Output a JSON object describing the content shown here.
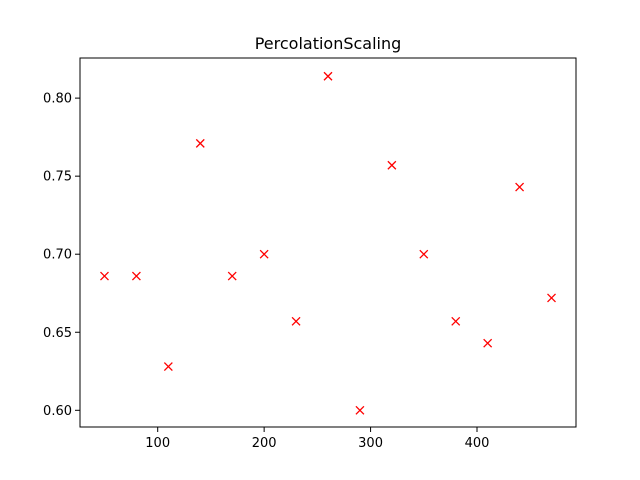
{
  "chart_data": {
    "type": "scatter",
    "title": "PercolationScaling",
    "xlabel": "",
    "ylabel": "",
    "xlim": [
      27,
      493
    ],
    "ylim": [
      0.5893,
      0.8257
    ],
    "grid": false,
    "marker": "x",
    "color": "#ff0000",
    "x_ticks": [
      100,
      200,
      300,
      400
    ],
    "y_ticks": [
      0.6,
      0.65,
      0.7,
      0.75,
      0.8
    ],
    "x_tick_labels": [
      "100",
      "200",
      "300",
      "400"
    ],
    "y_tick_labels": [
      "0.60",
      "0.65",
      "0.70",
      "0.75",
      "0.80"
    ],
    "x": [
      50,
      80,
      110,
      140,
      170,
      200,
      230,
      260,
      290,
      320,
      350,
      380,
      410,
      440,
      470
    ],
    "y": [
      0.686,
      0.686,
      0.628,
      0.771,
      0.686,
      0.7,
      0.657,
      0.814,
      0.6,
      0.757,
      0.7,
      0.657,
      0.643,
      0.743,
      0.672
    ]
  }
}
